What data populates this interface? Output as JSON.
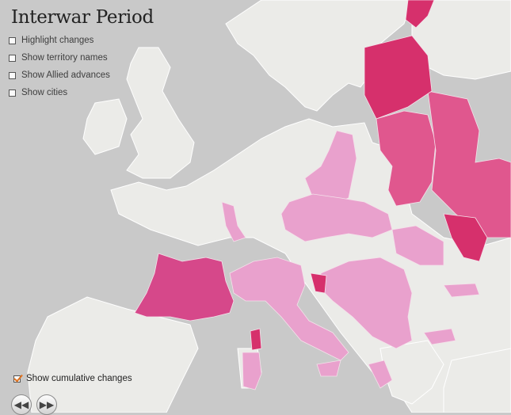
{
  "title": "Interwar Period",
  "options": [
    {
      "label": "Highlight changes",
      "checked": false
    },
    {
      "label": "Show territory names",
      "checked": false
    },
    {
      "label": "Show Allied advances",
      "checked": false
    },
    {
      "label": "Show cities",
      "checked": false
    }
  ],
  "cumulative": {
    "label": "Show cumulative changes",
    "checked": true
  },
  "nav": {
    "rewind_icon": "rewind-icon",
    "forward_icon": "fast-forward-icon"
  },
  "colors": {
    "sea": "#c9c9c9",
    "land": "#ebebe8",
    "border": "#ffffff",
    "change_strong": "#d6306c",
    "change_medium": "#e0578e",
    "change_light": "#e9a1cd"
  }
}
